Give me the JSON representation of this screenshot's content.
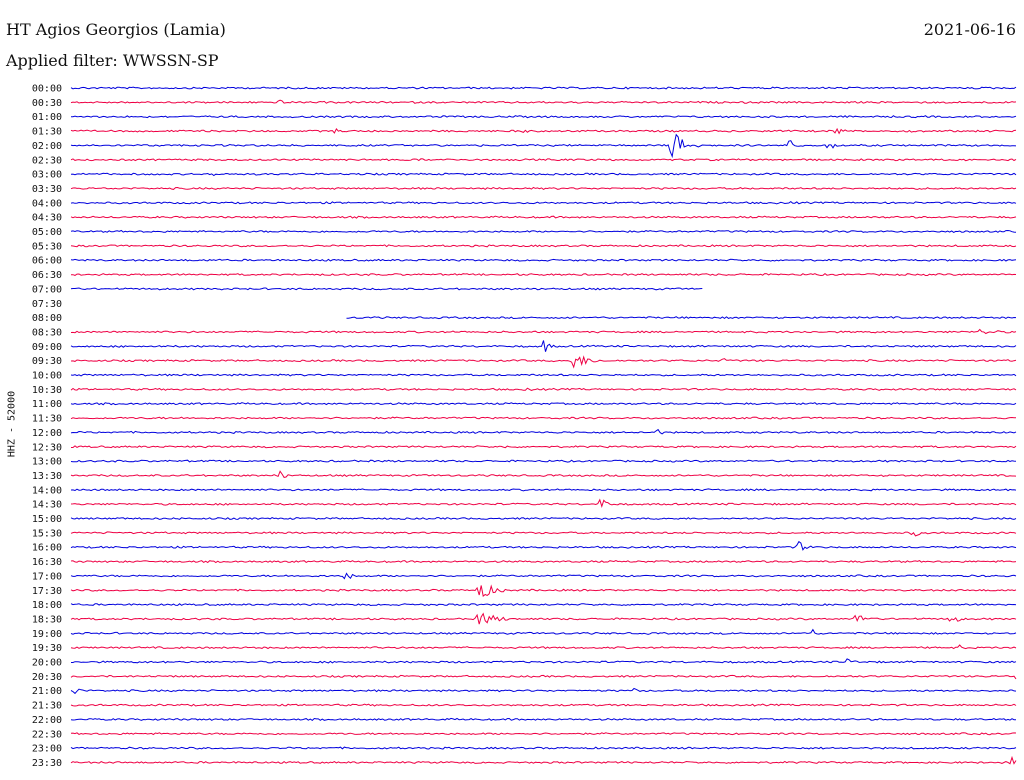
{
  "header": {
    "station": "HT Agios Georgios (Lamia)",
    "date": "2021-06-16",
    "filter": "Applied filter: WWSSN-SP"
  },
  "axis": {
    "ylabel": "HHZ - 52000"
  },
  "colors": {
    "blue": "#0000dd",
    "red": "#ee0044"
  },
  "chart_data": {
    "type": "line",
    "title": "HT Agios Georgios (Lamia)",
    "subtitle": "Applied filter: WWSSN-SP",
    "ylabel": "HHZ - 52000",
    "row_labels": [
      "00:00",
      "00:30",
      "01:00",
      "01:30",
      "02:00",
      "02:30",
      "03:00",
      "03:30",
      "04:00",
      "04:30",
      "05:00",
      "05:30",
      "06:00",
      "06:30",
      "07:00",
      "07:30",
      "08:00",
      "08:30",
      "09:00",
      "09:30",
      "10:00",
      "10:30",
      "11:00",
      "11:30",
      "12:00",
      "12:30",
      "13:00",
      "13:30",
      "14:00",
      "14:30",
      "15:00",
      "15:30",
      "16:00",
      "16:30",
      "17:00",
      "17:30",
      "18:00",
      "18:30",
      "19:00",
      "19:30",
      "20:00",
      "20:30",
      "21:00",
      "21:30",
      "22:00",
      "22:30",
      "23:00",
      "23:30"
    ],
    "trace_colors": [
      "blue",
      "red"
    ],
    "gaps": [
      {
        "row": 14,
        "from": 0.67,
        "to": 1.0
      },
      {
        "row": 15,
        "from": 0.0,
        "to": 1.0
      },
      {
        "row": 16,
        "from": 0.0,
        "to": 0.29
      }
    ],
    "events": [
      {
        "row": 1,
        "t": 0.22,
        "amp": 3,
        "dur": 0.015
      },
      {
        "row": 1,
        "t": 0.7,
        "amp": 2,
        "dur": 0.01
      },
      {
        "row": 3,
        "t": 0.28,
        "amp": 4,
        "dur": 0.008
      },
      {
        "row": 3,
        "t": 0.48,
        "amp": 3,
        "dur": 0.01
      },
      {
        "row": 3,
        "t": 0.81,
        "amp": 6,
        "dur": 0.012
      },
      {
        "row": 3,
        "t": 0.89,
        "amp": 3,
        "dur": 0.015
      },
      {
        "row": 4,
        "t": 0.635,
        "amp": 16,
        "dur": 0.03
      },
      {
        "row": 4,
        "t": 0.76,
        "amp": 10,
        "dur": 0.012
      },
      {
        "row": 4,
        "t": 0.8,
        "amp": 8,
        "dur": 0.012
      },
      {
        "row": 5,
        "t": 0.37,
        "amp": 3,
        "dur": 0.006
      },
      {
        "row": 6,
        "t": 0.15,
        "amp": 3,
        "dur": 0.01
      },
      {
        "row": 8,
        "t": 0.76,
        "amp": 2,
        "dur": 0.015
      },
      {
        "row": 17,
        "t": 0.96,
        "amp": 3,
        "dur": 0.05
      },
      {
        "row": 18,
        "t": 0.5,
        "amp": 8,
        "dur": 0.012
      },
      {
        "row": 19,
        "t": 0.53,
        "amp": 10,
        "dur": 0.03
      },
      {
        "row": 19,
        "t": 0.69,
        "amp": 3,
        "dur": 0.015
      },
      {
        "row": 21,
        "t": 0.48,
        "amp": 2,
        "dur": 0.03
      },
      {
        "row": 24,
        "t": 0.62,
        "amp": 4,
        "dur": 0.012
      },
      {
        "row": 25,
        "t": 0.46,
        "amp": 3,
        "dur": 0.004
      },
      {
        "row": 27,
        "t": 0.22,
        "amp": 6,
        "dur": 0.012
      },
      {
        "row": 28,
        "t": 0.275,
        "amp": 3,
        "dur": 0.004
      },
      {
        "row": 29,
        "t": 0.56,
        "amp": 9,
        "dur": 0.014
      },
      {
        "row": 31,
        "t": 0.89,
        "amp": 6,
        "dur": 0.012
      },
      {
        "row": 32,
        "t": 0.77,
        "amp": 6,
        "dur": 0.016
      },
      {
        "row": 34,
        "t": 0.29,
        "amp": 6,
        "dur": 0.014
      },
      {
        "row": 35,
        "t": 0.43,
        "amp": 11,
        "dur": 0.03
      },
      {
        "row": 37,
        "t": 0.43,
        "amp": 9,
        "dur": 0.035
      },
      {
        "row": 37,
        "t": 0.83,
        "amp": 11,
        "dur": 0.02
      },
      {
        "row": 37,
        "t": 0.93,
        "amp": 7,
        "dur": 0.016
      },
      {
        "row": 38,
        "t": 0.785,
        "amp": 5,
        "dur": 0.008
      },
      {
        "row": 39,
        "t": 0.94,
        "amp": 3,
        "dur": 0.015
      },
      {
        "row": 40,
        "t": 0.82,
        "amp": 4,
        "dur": 0.02
      },
      {
        "row": 41,
        "t": 0.998,
        "amp": 10,
        "dur": 0.004
      },
      {
        "row": 42,
        "t": 0.003,
        "amp": 7,
        "dur": 0.01
      },
      {
        "row": 42,
        "t": 0.595,
        "amp": 3,
        "dur": 0.01
      },
      {
        "row": 47,
        "t": 0.995,
        "amp": 14,
        "dur": 0.006
      }
    ]
  }
}
